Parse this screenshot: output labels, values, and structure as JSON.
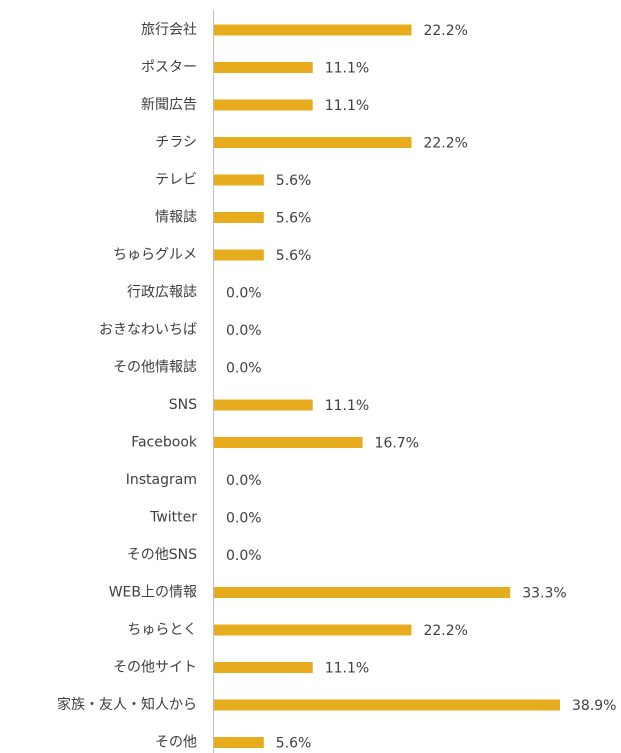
{
  "chart_data": {
    "type": "bar",
    "orientation": "horizontal",
    "color": "#e6ac1e",
    "categories": [
      "旅行会社",
      "ポスター",
      "新聞広告",
      "チラシ",
      "テレビ",
      "情報誌",
      "ちゅらグルメ",
      "行政広報誌",
      "おきなわいちば",
      "その他情報誌",
      "SNS",
      "Facebook",
      "Instagram",
      "Twitter",
      "その他SNS",
      "WEB上の情報",
      "ちゅらとく",
      "その他サイト",
      "家族・友人・知人から",
      "その他"
    ],
    "values": [
      22.2,
      11.1,
      11.1,
      22.2,
      5.6,
      5.6,
      5.6,
      0.0,
      0.0,
      0.0,
      11.1,
      16.7,
      0.0,
      0.0,
      0.0,
      33.3,
      22.2,
      11.1,
      38.9,
      5.6
    ],
    "value_labels": [
      "22.2%",
      "11.1%",
      "11.1%",
      "22.2%",
      "5.6%",
      "5.6%",
      "5.6%",
      "0.0%",
      "0.0%",
      "0.0%",
      "11.1%",
      "16.7%",
      "0.0%",
      "0.0%",
      "0.0%",
      "33.3%",
      "22.2%",
      "11.1%",
      "38.9%",
      "5.6%"
    ]
  }
}
